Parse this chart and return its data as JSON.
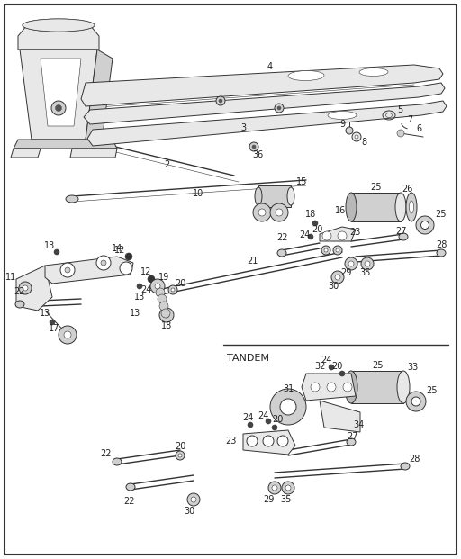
{
  "bg_color": "#f5f5f5",
  "border_color": "#333333",
  "line_color": "#333333",
  "fill_light": "#e8e8e8",
  "fill_mid": "#d0d0d0",
  "fill_dark": "#b8b8b8",
  "tandem_label": "TANDEM",
  "figsize": [
    5.12,
    6.21
  ],
  "dpi": 100
}
